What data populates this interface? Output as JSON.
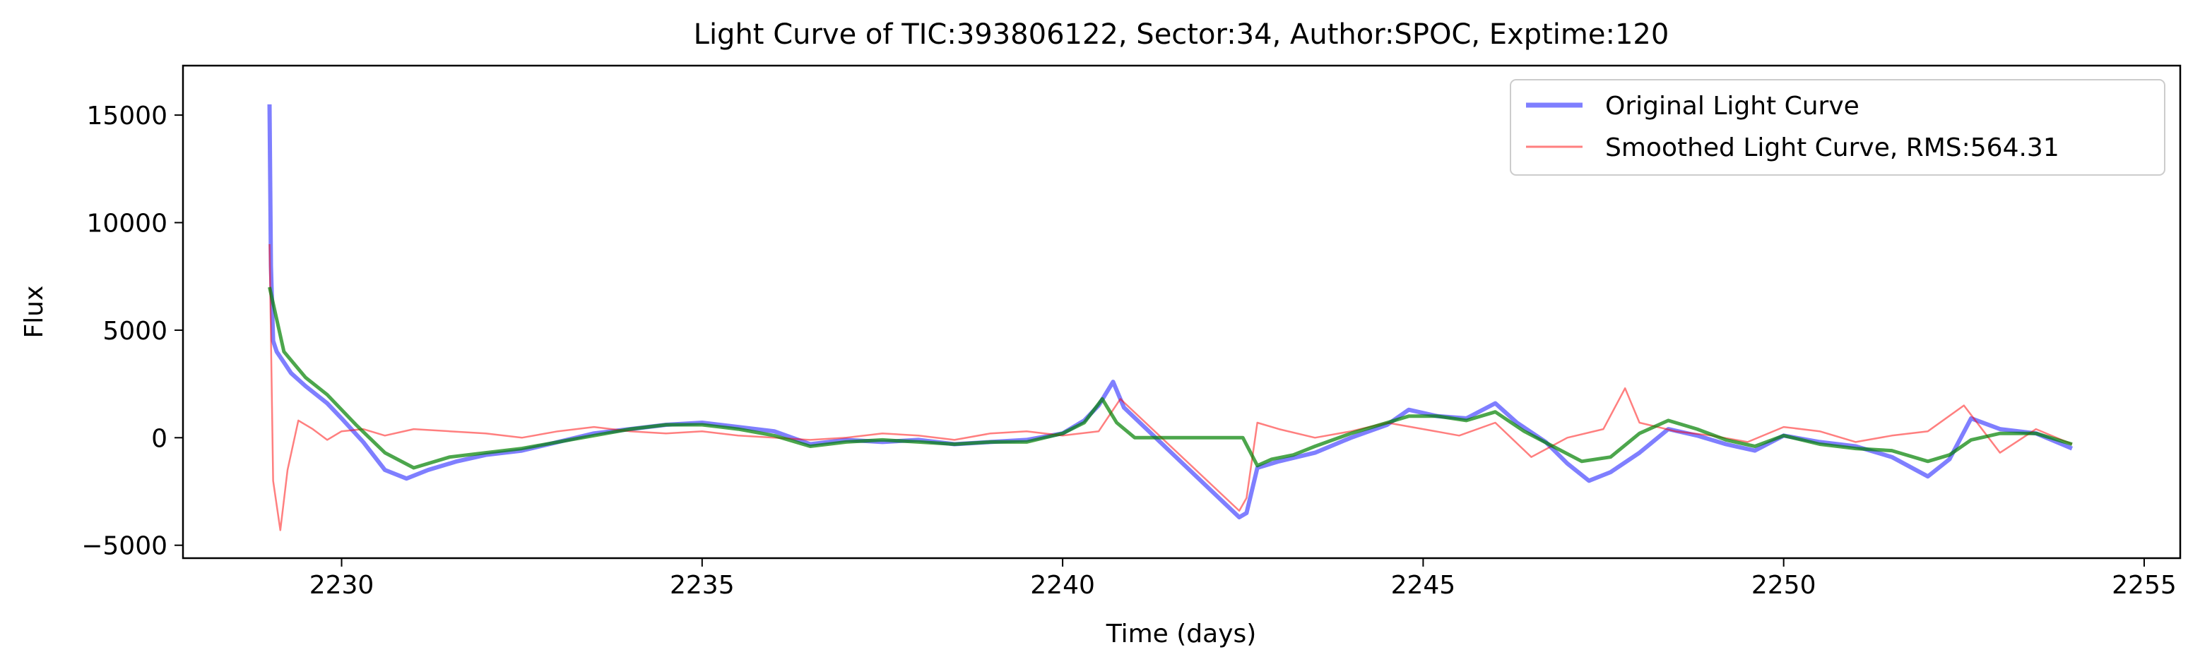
{
  "chart_data": {
    "type": "line",
    "title": "Light Curve of TIC:393806122, Sector:34, Author:SPOC, Exptime:120",
    "xlabel": "Time (days)",
    "ylabel": "Flux",
    "xlim": [
      2227.8,
      2255.5
    ],
    "ylim": [
      -5600,
      17300
    ],
    "xticks": [
      2230,
      2235,
      2240,
      2245,
      2250,
      2255
    ],
    "yticks": [
      -5000,
      0,
      5000,
      10000,
      15000
    ],
    "grid": false,
    "legend_position": "top-right",
    "series": [
      {
        "name": "Original Light Curve",
        "color": "#0000ff",
        "x": [
          2229.0,
          2229.02,
          2229.05,
          2229.1,
          2229.2,
          2229.3,
          2229.5,
          2229.8,
          2230.0,
          2230.3,
          2230.6,
          2230.9,
          2231.2,
          2231.6,
          2232.0,
          2232.5,
          2233.0,
          2233.5,
          2234.0,
          2234.5,
          2235.0,
          2235.5,
          2236.0,
          2236.5,
          2237.0,
          2237.5,
          2238.0,
          2238.5,
          2239.0,
          2239.5,
          2240.0,
          2240.3,
          2240.5,
          2240.7,
          2240.85,
          2242.45,
          2242.55,
          2242.7,
          2243.0,
          2243.5,
          2244.0,
          2244.5,
          2244.8,
          2245.2,
          2245.6,
          2246.0,
          2246.3,
          2246.7,
          2247.0,
          2247.3,
          2247.6,
          2248.0,
          2248.4,
          2248.8,
          2249.2,
          2249.6,
          2250.0,
          2250.5,
          2251.0,
          2251.5,
          2252.0,
          2252.3,
          2252.6,
          2253.0,
          2253.5,
          2254.0
        ],
        "y": [
          15500,
          8000,
          4500,
          4000,
          3500,
          3000,
          2400,
          1600,
          900,
          -200,
          -1500,
          -1900,
          -1500,
          -1100,
          -800,
          -600,
          -200,
          200,
          400,
          600,
          700,
          500,
          300,
          -300,
          -100,
          -200,
          -100,
          -300,
          -200,
          -100,
          200,
          800,
          1500,
          2600,
          1400,
          -3700,
          -3500,
          -1400,
          -1100,
          -700,
          0,
          600,
          1300,
          1000,
          900,
          1600,
          700,
          -200,
          -1200,
          -2000,
          -1600,
          -700,
          400,
          100,
          -300,
          -600,
          100,
          -200,
          -400,
          -900,
          -1800,
          -1000,
          900,
          400,
          200,
          -500
        ]
      },
      {
        "name": "Smoothed Light Curve, RMS:564.31",
        "color": "#ff0000",
        "x": [
          2229.0,
          2229.05,
          2229.15,
          2229.25,
          2229.4,
          2229.6,
          2229.8,
          2230.0,
          2230.3,
          2230.6,
          2231.0,
          2231.5,
          2232.0,
          2232.5,
          2233.0,
          2233.5,
          2234.0,
          2234.5,
          2235.0,
          2235.5,
          2236.0,
          2236.5,
          2237.0,
          2237.5,
          2238.0,
          2238.5,
          2239.0,
          2239.5,
          2240.0,
          2240.5,
          2240.8,
          2242.45,
          2242.55,
          2242.7,
          2243.0,
          2243.5,
          2244.0,
          2244.5,
          2245.0,
          2245.5,
          2246.0,
          2246.5,
          2247.0,
          2247.5,
          2247.8,
          2248.0,
          2248.5,
          2249.0,
          2249.5,
          2250.0,
          2250.5,
          2251.0,
          2251.5,
          2252.0,
          2252.5,
          2253.0,
          2253.5,
          2254.0
        ],
        "y": [
          9000,
          -2000,
          -4300,
          -1500,
          800,
          400,
          -100,
          300,
          400,
          100,
          400,
          300,
          200,
          0,
          300,
          500,
          300,
          200,
          300,
          100,
          0,
          -100,
          0,
          200,
          100,
          -100,
          200,
          300,
          100,
          300,
          1800,
          -3400,
          -2800,
          700,
          400,
          0,
          300,
          700,
          400,
          100,
          700,
          -900,
          0,
          400,
          2300,
          700,
          300,
          100,
          -200,
          500,
          300,
          -200,
          100,
          300,
          1500,
          -700,
          400,
          -300
        ]
      },
      {
        "name": "",
        "color": "#008000",
        "x": [
          2229.0,
          2229.2,
          2229.5,
          2229.8,
          2230.2,
          2230.6,
          2231.0,
          2231.5,
          2232.0,
          2232.5,
          2233.0,
          2233.5,
          2234.0,
          2234.5,
          2235.0,
          2235.5,
          2236.0,
          2236.5,
          2237.0,
          2237.5,
          2238.0,
          2238.5,
          2239.0,
          2239.5,
          2240.0,
          2240.3,
          2240.55,
          2240.75,
          2241.0,
          2242.5,
          2242.7,
          2242.9,
          2243.2,
          2243.5,
          2244.0,
          2244.5,
          2244.8,
          2245.2,
          2245.6,
          2246.0,
          2246.4,
          2246.8,
          2247.2,
          2247.6,
          2248.0,
          2248.4,
          2248.8,
          2249.2,
          2249.6,
          2250.0,
          2250.5,
          2251.0,
          2251.5,
          2252.0,
          2252.3,
          2252.6,
          2253.0,
          2253.5,
          2254.0
        ],
        "y": [
          7000,
          4000,
          2800,
          2000,
          600,
          -700,
          -1400,
          -900,
          -700,
          -500,
          -200,
          100,
          400,
          600,
          600,
          400,
          100,
          -400,
          -200,
          -100,
          -200,
          -300,
          -200,
          -200,
          200,
          700,
          1800,
          700,
          0,
          0,
          -1300,
          -1000,
          -800,
          -400,
          200,
          700,
          1000,
          1000,
          800,
          1200,
          300,
          -400,
          -1100,
          -900,
          200,
          800,
          400,
          -100,
          -400,
          100,
          -300,
          -500,
          -600,
          -1100,
          -800,
          -100,
          200,
          200,
          -300
        ]
      }
    ],
    "legend": [
      {
        "label": "Original Light Curve",
        "color": "#0000ff"
      },
      {
        "label": "Smoothed Light Curve, RMS:564.31",
        "color": "#ff0000"
      }
    ]
  }
}
